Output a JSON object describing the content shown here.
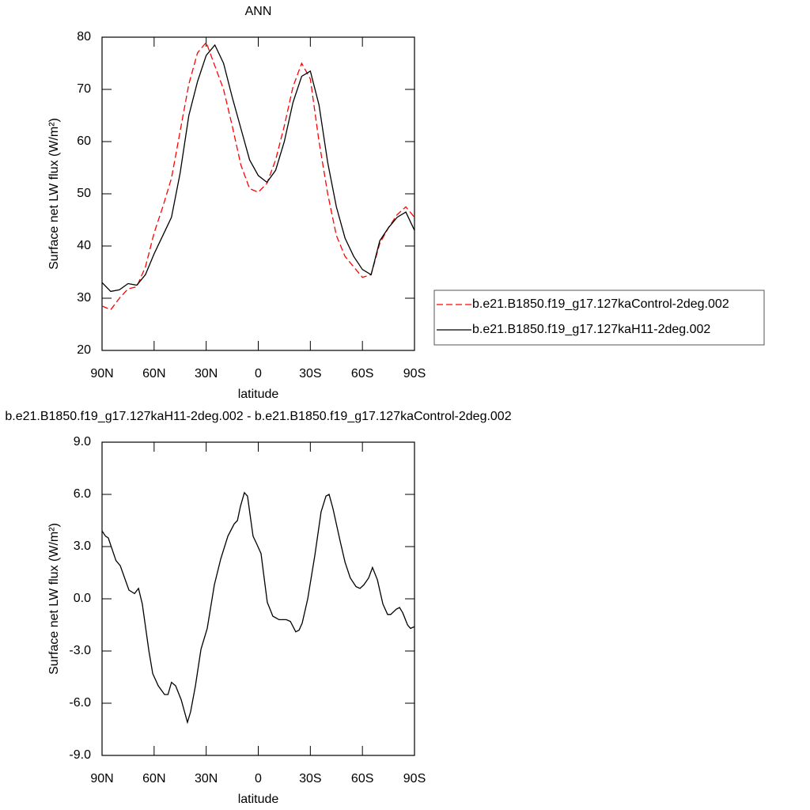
{
  "chart_data": [
    {
      "type": "line",
      "title": "ANN",
      "x_label": "latitude",
      "y_label": "Surface net LW flux (W/m²)",
      "x": [
        90,
        85,
        80,
        75,
        70,
        65,
        60,
        55,
        50,
        45,
        40,
        35,
        30,
        25,
        20,
        15,
        10,
        5,
        0,
        -5,
        -10,
        -15,
        -20,
        -25,
        -30,
        -35,
        -40,
        -45,
        -50,
        -55,
        -60,
        -65,
        -70,
        -75,
        -80,
        -85,
        -90
      ],
      "series": [
        {
          "name": "b.e21.B1850.f19_g17.127kaControl-2deg.002",
          "color": "#ff0000",
          "line_style": "dashed",
          "values": [
            28.5,
            27.8,
            30,
            31.8,
            32.2,
            36,
            42.5,
            47.5,
            53,
            62,
            71,
            77,
            79,
            74.5,
            70,
            63,
            55.5,
            51,
            50.3,
            52,
            56.5,
            63,
            70.5,
            75,
            72,
            60,
            50,
            42,
            38,
            36,
            34,
            34.5,
            40.5,
            43.5,
            46,
            47.5,
            45.5
          ]
        },
        {
          "name": "b.e21.B1850.f19_g17.127kaH11-2deg.002",
          "color": "#000000",
          "line_style": "solid",
          "values": [
            33,
            31.3,
            31.6,
            32.8,
            32.5,
            34.5,
            38.5,
            42,
            45.5,
            54,
            65,
            71.5,
            76.5,
            78.5,
            75,
            68.5,
            62.5,
            56.5,
            53.5,
            52.2,
            54.5,
            60,
            67.5,
            72.5,
            73.5,
            67,
            56,
            47.5,
            41.5,
            38,
            35.5,
            34.5,
            41,
            43.5,
            45.5,
            46.5,
            43
          ]
        }
      ],
      "xlim": [
        90,
        -90
      ],
      "xticks": [
        {
          "value": 90,
          "label": "90N"
        },
        {
          "value": 60,
          "label": "60N"
        },
        {
          "value": 30,
          "label": "30N"
        },
        0,
        {
          "value": -30,
          "label": "30S"
        },
        {
          "value": -60,
          "label": "60S"
        },
        {
          "value": -90,
          "label": "90S"
        }
      ],
      "ylim": [
        20,
        80
      ],
      "yticks": [
        20,
        30,
        40,
        50,
        60,
        70,
        80
      ],
      "legend": "right"
    },
    {
      "type": "line",
      "title": "b.e21.B1850.f19_g17.127kaH11-2deg.002 - b.e21.B1850.f19_g17.127kaControl-2deg.002",
      "x_label": "latitude",
      "y_label": "Surface net LW flux (W/m²)",
      "x": [
        90,
        88,
        86.4,
        82,
        79.5,
        77,
        74.5,
        71.3,
        69,
        66.8,
        63,
        60.8,
        57.6,
        54,
        52,
        50,
        47.6,
        44.4,
        40.8,
        39,
        36.2,
        33,
        29.4,
        25.3,
        21.6,
        17.5,
        13.9,
        12,
        10.3,
        8,
        6.2,
        3,
        1.1,
        -1.6,
        -3,
        -5.2,
        -8.4,
        -12,
        -16.2,
        -18.5,
        -21.6,
        -23.5,
        -25.3,
        -28.5,
        -32.6,
        -36.2,
        -39,
        -40.8,
        -43,
        -47.2,
        -50,
        -53,
        -56.3,
        -58.6,
        -60.8,
        -63.6,
        -65.8,
        -68.6,
        -71.8,
        -74.5,
        -76.3,
        -79.5,
        -81.4,
        -83.2,
        -86,
        -87.7,
        -90
      ],
      "series": [
        {
          "color": "#000000",
          "line_style": "solid",
          "values": [
            3.9,
            3.6,
            3.5,
            2.2,
            1.9,
            1.2,
            0.5,
            0.3,
            0.6,
            -0.3,
            -3,
            -4.3,
            -5,
            -5.5,
            -5.5,
            -4.8,
            -5,
            -5.8,
            -7.1,
            -6.5,
            -5,
            -2.9,
            -1.7,
            0.8,
            2.3,
            3.6,
            4.3,
            4.5,
            5.3,
            6.1,
            5.9,
            3.6,
            3.2,
            2.6,
            1.5,
            -0.2,
            -1,
            -1.2,
            -1.2,
            -1.3,
            -1.9,
            -1.8,
            -1.4,
            0,
            2.5,
            5,
            5.9,
            6,
            5.2,
            3.3,
            2.1,
            1.2,
            0.7,
            0.6,
            0.8,
            1.2,
            1.8,
            1.1,
            -0.3,
            -0.9,
            -0.9,
            -0.6,
            -0.5,
            -0.8,
            -1.5,
            -1.7,
            -1.6
          ]
        }
      ],
      "xlim": [
        90,
        -90
      ],
      "xticks": [
        {
          "value": 90,
          "label": "90N"
        },
        {
          "value": 60,
          "label": "60N"
        },
        {
          "value": 30,
          "label": "30N"
        },
        0,
        {
          "value": -30,
          "label": "30S"
        },
        {
          "value": -60,
          "label": "60S"
        },
        {
          "value": -90,
          "label": "90S"
        }
      ],
      "ylim": [
        -9,
        9
      ],
      "yticks": [
        {
          "value": -9,
          "label": "-9.0"
        },
        {
          "value": -6,
          "label": "-6.0"
        },
        {
          "value": -3,
          "label": "-3.0"
        },
        {
          "value": 0,
          "label": "0.0"
        },
        {
          "value": 3,
          "label": "3.0"
        },
        {
          "value": 6,
          "label": "6.0"
        },
        {
          "value": 9,
          "label": "9.0"
        }
      ]
    }
  ]
}
